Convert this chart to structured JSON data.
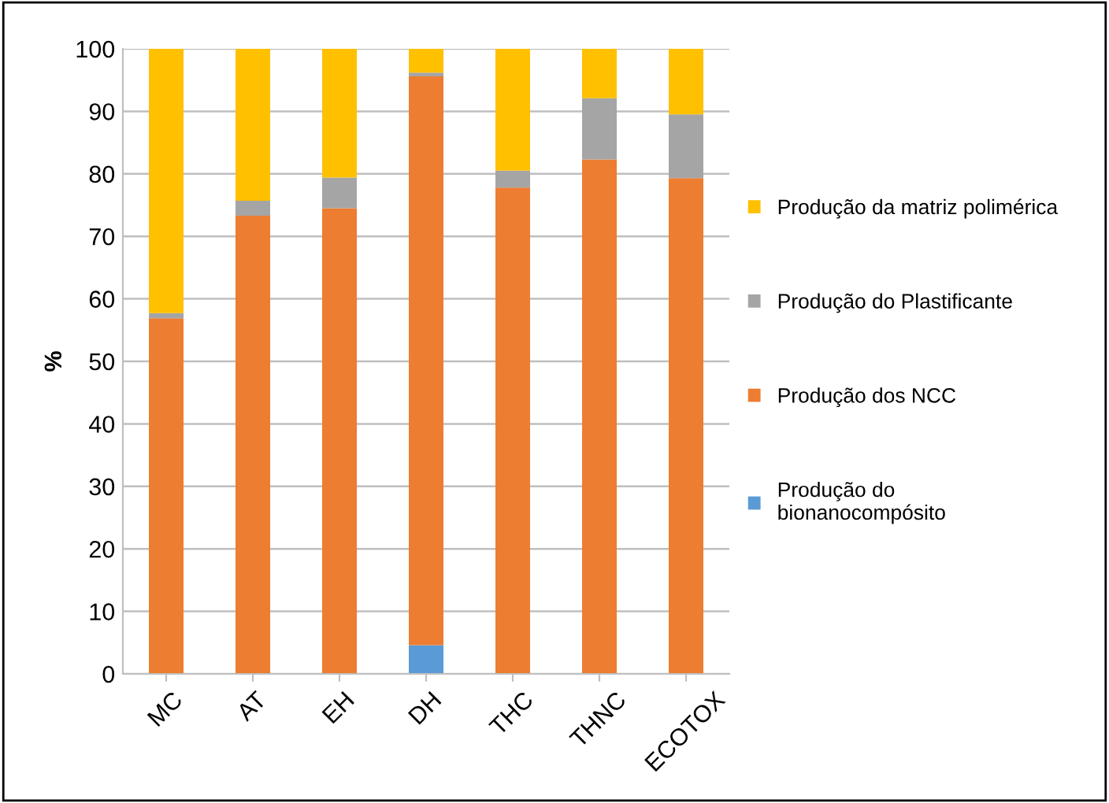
{
  "chart_data": {
    "type": "bar",
    "stacked": true,
    "ylabel": "%",
    "categories": [
      "MC",
      "AT",
      "EH",
      "DH",
      "THC",
      "THNC",
      "ECOTOX"
    ],
    "series": [
      {
        "name": "Produção do bionanocompósito",
        "color": "#5b9bd5",
        "values": [
          0,
          0,
          0,
          4.6,
          0,
          0,
          0
        ]
      },
      {
        "name": "Produção dos NCC",
        "color": "#ed7d31",
        "values": [
          56.9,
          73.3,
          74.5,
          91.0,
          77.8,
          82.3,
          79.3
        ]
      },
      {
        "name": "Produção do Plastificante",
        "color": "#a5a5a5",
        "values": [
          0.8,
          2.4,
          4.9,
          0.6,
          2.7,
          9.8,
          10.2
        ]
      },
      {
        "name": "Produção da matriz polimérica",
        "color": "#ffc000",
        "values": [
          42.3,
          24.3,
          20.6,
          3.8,
          19.5,
          7.9,
          10.5
        ]
      }
    ],
    "ylim": [
      0,
      100
    ],
    "yticks": [
      0,
      10,
      20,
      30,
      40,
      50,
      60,
      70,
      80,
      90,
      100
    ],
    "grid": "y",
    "legend": "right"
  }
}
